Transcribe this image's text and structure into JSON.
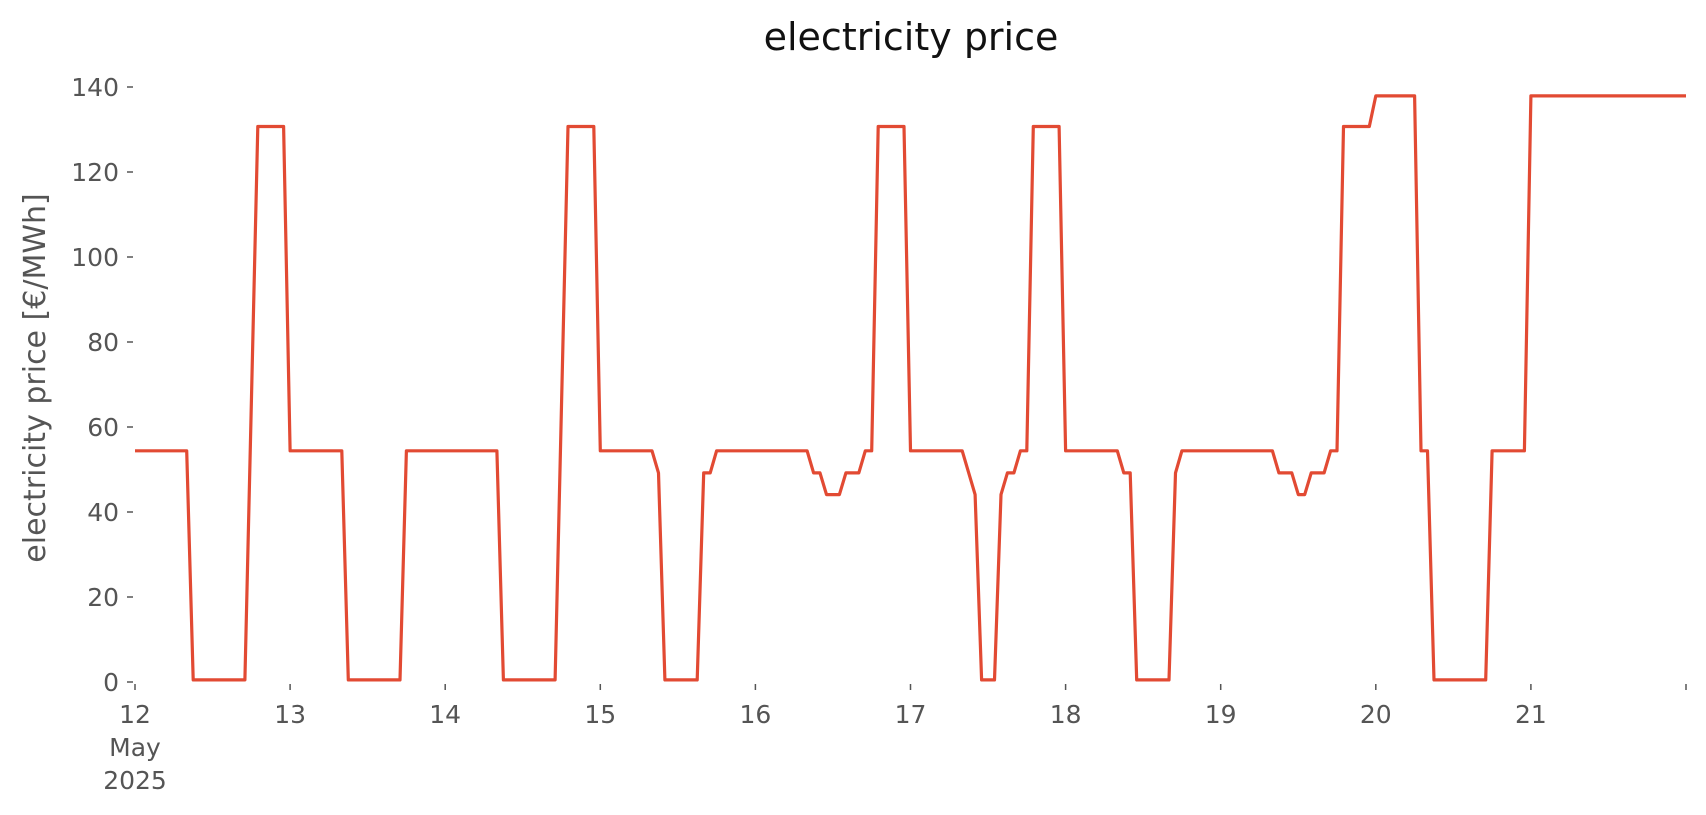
{
  "chart_data": {
    "type": "line",
    "title": "electricity price",
    "xlabel": "",
    "ylabel": "electricity price [€/MWh]",
    "ylim": [
      0,
      140
    ],
    "xlim": [
      "2025-05-12T00:00",
      "2025-05-22T00:00"
    ],
    "grid": false,
    "yticks": [
      0,
      20,
      40,
      60,
      80,
      100,
      120,
      140
    ],
    "yticks_labels": [
      "0",
      "20",
      "40",
      "60",
      "80",
      "100",
      "120",
      "140"
    ],
    "xticks": [
      {
        "date": "2025-05-12T00:00",
        "label": "12",
        "label_lines": [
          "12",
          "May",
          "2025"
        ]
      },
      {
        "date": "2025-05-13T00:00",
        "label": "13"
      },
      {
        "date": "2025-05-14T00:00",
        "label": "14"
      },
      {
        "date": "2025-05-15T00:00",
        "label": "15"
      },
      {
        "date": "2025-05-16T00:00",
        "label": "16"
      },
      {
        "date": "2025-05-17T00:00",
        "label": "17"
      },
      {
        "date": "2025-05-18T00:00",
        "label": "18"
      },
      {
        "date": "2025-05-19T00:00",
        "label": "19"
      },
      {
        "date": "2025-05-20T00:00",
        "label": "20"
      },
      {
        "date": "2025-05-21T00:00",
        "label": "21"
      },
      {
        "date": "2025-05-22T00:00",
        "label": ""
      }
    ],
    "series": [
      {
        "color": "#E24A33",
        "points": [
          [
            "2025-05-12T00:00",
            54.4
          ],
          [
            "2025-05-12T08:00",
            54.4
          ],
          [
            "2025-05-12T09:00",
            0.5
          ],
          [
            "2025-05-12T17:00",
            0.5
          ],
          [
            "2025-05-12T19:00",
            130.7
          ],
          [
            "2025-05-12T23:00",
            130.7
          ],
          [
            "2025-05-13T00:00",
            54.4
          ],
          [
            "2025-05-13T08:00",
            54.4
          ],
          [
            "2025-05-13T09:00",
            0.5
          ],
          [
            "2025-05-13T17:00",
            0.5
          ],
          [
            "2025-05-13T18:00",
            54.4
          ],
          [
            "2025-05-14T08:00",
            54.4
          ],
          [
            "2025-05-14T09:00",
            0.5
          ],
          [
            "2025-05-14T17:00",
            0.5
          ],
          [
            "2025-05-14T19:00",
            130.7
          ],
          [
            "2025-05-14T23:00",
            130.7
          ],
          [
            "2025-05-15T00:00",
            54.4
          ],
          [
            "2025-05-15T08:00",
            54.4
          ],
          [
            "2025-05-15T09:00",
            49.2
          ],
          [
            "2025-05-15T10:00",
            0.5
          ],
          [
            "2025-05-15T15:00",
            0.5
          ],
          [
            "2025-05-15T16:00",
            49.2
          ],
          [
            "2025-05-15T17:00",
            49.2
          ],
          [
            "2025-05-15T18:00",
            54.4
          ],
          [
            "2025-05-16T08:00",
            54.4
          ],
          [
            "2025-05-16T09:00",
            49.2
          ],
          [
            "2025-05-16T10:00",
            49.2
          ],
          [
            "2025-05-16T11:00",
            44.1
          ],
          [
            "2025-05-16T13:00",
            44.1
          ],
          [
            "2025-05-16T14:00",
            49.2
          ],
          [
            "2025-05-16T16:00",
            49.2
          ],
          [
            "2025-05-16T17:00",
            54.4
          ],
          [
            "2025-05-16T18:00",
            54.4
          ],
          [
            "2025-05-16T19:00",
            130.7
          ],
          [
            "2025-05-16T23:00",
            130.7
          ],
          [
            "2025-05-17T00:00",
            54.4
          ],
          [
            "2025-05-17T08:00",
            54.4
          ],
          [
            "2025-05-17T10:00",
            44.1
          ],
          [
            "2025-05-17T11:00",
            0.5
          ],
          [
            "2025-05-17T13:00",
            0.5
          ],
          [
            "2025-05-17T14:00",
            44.1
          ],
          [
            "2025-05-17T15:00",
            49.2
          ],
          [
            "2025-05-17T16:00",
            49.2
          ],
          [
            "2025-05-17T17:00",
            54.4
          ],
          [
            "2025-05-17T18:00",
            54.4
          ],
          [
            "2025-05-17T19:00",
            130.7
          ],
          [
            "2025-05-17T23:00",
            130.7
          ],
          [
            "2025-05-18T00:00",
            54.4
          ],
          [
            "2025-05-18T08:00",
            54.4
          ],
          [
            "2025-05-18T09:00",
            49.2
          ],
          [
            "2025-05-18T10:00",
            49.2
          ],
          [
            "2025-05-18T11:00",
            0.5
          ],
          [
            "2025-05-18T16:00",
            0.5
          ],
          [
            "2025-05-18T17:00",
            49.2
          ],
          [
            "2025-05-18T18:00",
            54.4
          ],
          [
            "2025-05-19T08:00",
            54.4
          ],
          [
            "2025-05-19T09:00",
            49.2
          ],
          [
            "2025-05-19T11:00",
            49.2
          ],
          [
            "2025-05-19T12:00",
            44.1
          ],
          [
            "2025-05-19T13:00",
            44.1
          ],
          [
            "2025-05-19T14:00",
            49.2
          ],
          [
            "2025-05-19T16:00",
            49.2
          ],
          [
            "2025-05-19T17:00",
            54.4
          ],
          [
            "2025-05-19T18:00",
            54.4
          ],
          [
            "2025-05-19T19:00",
            130.7
          ],
          [
            "2025-05-19T23:00",
            130.7
          ],
          [
            "2025-05-20T00:00",
            137.9
          ],
          [
            "2025-05-20T06:00",
            137.9
          ],
          [
            "2025-05-20T07:00",
            54.4
          ],
          [
            "2025-05-20T08:00",
            54.4
          ],
          [
            "2025-05-20T09:00",
            0.5
          ],
          [
            "2025-05-20T17:00",
            0.5
          ],
          [
            "2025-05-20T18:00",
            54.4
          ],
          [
            "2025-05-20T23:00",
            54.4
          ],
          [
            "2025-05-21T00:00",
            137.9
          ],
          [
            "2025-05-22T00:00",
            137.9
          ]
        ]
      }
    ]
  }
}
